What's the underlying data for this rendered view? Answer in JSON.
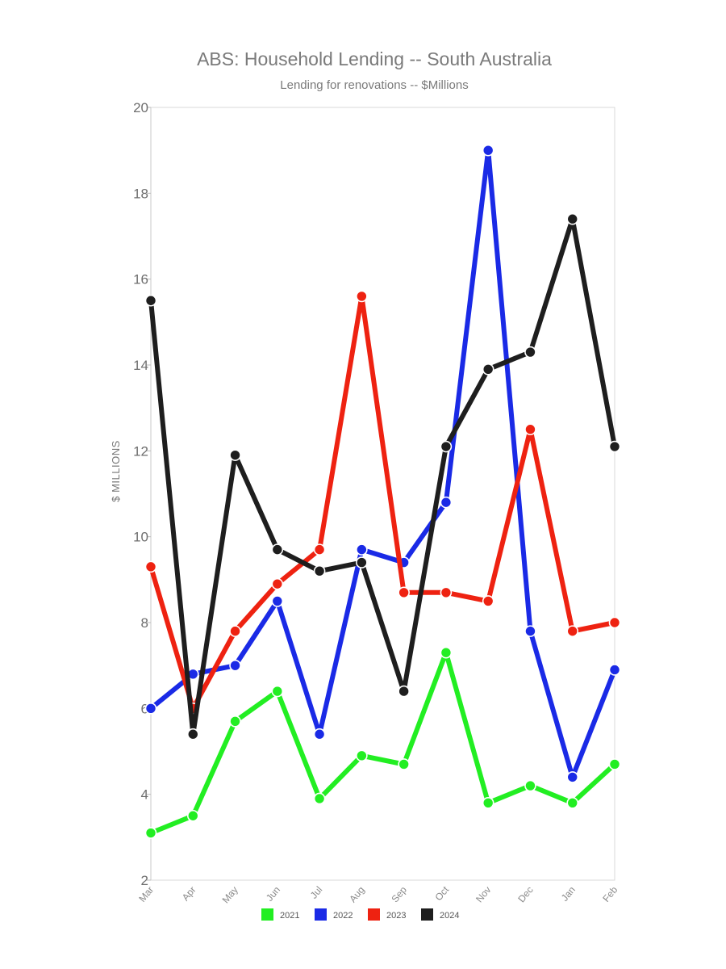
{
  "chart_data": {
    "type": "line",
    "title": "ABS: Household Lending -- South Australia",
    "subtitle": "Lending for renovations -- $Millions",
    "xlabel": "",
    "ylabel": "$ MILLIONS",
    "categories": [
      "Mar",
      "Apr",
      "May",
      "Jun",
      "Jul",
      "Aug",
      "Sep",
      "Oct",
      "Nov",
      "Dec",
      "Jan",
      "Feb"
    ],
    "ylim": [
      2,
      20
    ],
    "yticks": [
      2,
      4,
      6,
      8,
      10,
      12,
      14,
      16,
      18,
      20
    ],
    "grid": false,
    "legend_position": "bottom",
    "series": [
      {
        "name": "2021",
        "color": "#22ee22",
        "values": [
          3.1,
          3.5,
          5.7,
          6.4,
          3.9,
          4.9,
          4.7,
          7.3,
          3.8,
          4.2,
          3.8,
          4.7
        ]
      },
      {
        "name": "2022",
        "color": "#1a2ae6",
        "values": [
          6.0,
          6.8,
          7.0,
          8.5,
          5.4,
          9.7,
          9.4,
          10.8,
          19.0,
          7.8,
          4.4,
          6.9
        ]
      },
      {
        "name": "2023",
        "color": "#ee2211",
        "values": [
          9.3,
          6.0,
          7.8,
          8.9,
          9.7,
          15.6,
          8.7,
          8.7,
          8.5,
          12.5,
          7.8,
          8.0
        ]
      },
      {
        "name": "2024",
        "color": "#1e1e1e",
        "values": [
          15.5,
          5.4,
          11.9,
          9.7,
          9.2,
          9.4,
          6.4,
          12.1,
          13.9,
          14.3,
          17.4,
          12.1
        ]
      }
    ]
  }
}
